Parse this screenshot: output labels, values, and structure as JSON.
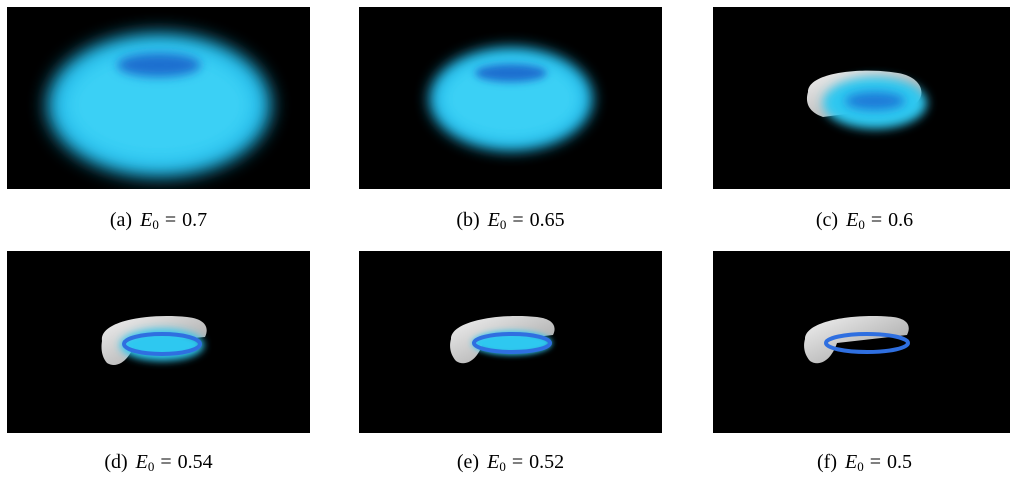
{
  "figure": {
    "panels": [
      {
        "label": "(a)",
        "symbol": "E",
        "subscript": "0",
        "value": "0.7"
      },
      {
        "label": "(b)",
        "symbol": "E",
        "subscript": "0",
        "value": "0.65"
      },
      {
        "label": "(c)",
        "symbol": "E",
        "subscript": "0",
        "value": "0.6"
      },
      {
        "label": "(d)",
        "symbol": "E",
        "subscript": "0",
        "value": "0.54"
      },
      {
        "label": "(e)",
        "symbol": "E",
        "subscript": "0",
        "value": "0.52"
      },
      {
        "label": "(f)",
        "symbol": "E",
        "subscript": "0",
        "value": "0.5"
      }
    ],
    "colors": {
      "background": "#000000",
      "glow": "#2ec8f0",
      "ring": "#2f6fe0",
      "surface": "#e2e2e2"
    }
  }
}
